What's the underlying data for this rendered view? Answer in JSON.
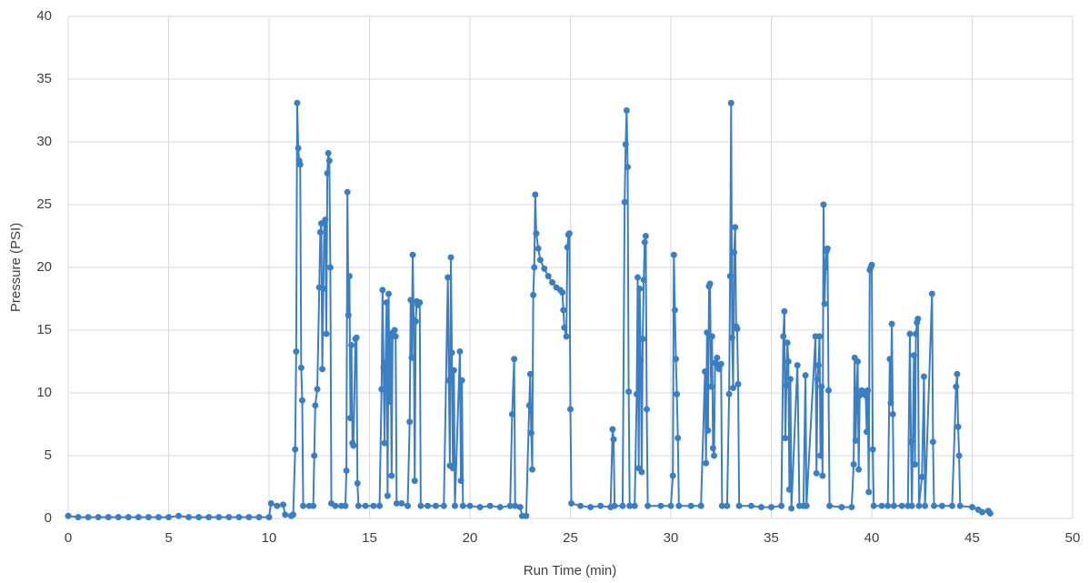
{
  "chart_data": {
    "type": "line",
    "x_label": "Run Time (min)",
    "y_label": "Pressure (PSI)",
    "xlim": [
      0,
      50
    ],
    "xticks": [
      0,
      5,
      10,
      15,
      20,
      25,
      30,
      35,
      40,
      45,
      50
    ],
    "ylim": [
      0,
      40
    ],
    "yticks": [
      0,
      5,
      10,
      15,
      20,
      25,
      30,
      35,
      40
    ],
    "grid": true,
    "x": [
      0,
      0.5,
      1,
      1.5,
      2,
      2.5,
      3,
      3.5,
      4,
      4.5,
      5,
      5.5,
      6,
      6.5,
      7,
      7.5,
      8,
      8.5,
      9,
      9.5,
      10,
      10.1,
      10.4,
      10.7,
      10.8,
      11.1,
      11.2,
      11.3,
      11.35,
      11.4,
      11.45,
      11.5,
      11.55,
      11.6,
      11.65,
      11.7,
      12.0,
      12.2,
      12.25,
      12.3,
      12.4,
      12.5,
      12.55,
      12.6,
      12.65,
      12.7,
      12.75,
      12.8,
      12.85,
      12.9,
      12.95,
      13.0,
      13.05,
      13.1,
      13.3,
      13.6,
      13.8,
      13.85,
      13.9,
      13.95,
      14.0,
      14.05,
      14.1,
      14.15,
      14.2,
      14.3,
      14.35,
      14.4,
      14.45,
      14.8,
      15.2,
      15.5,
      15.6,
      15.65,
      15.7,
      15.75,
      15.8,
      15.85,
      15.9,
      15.95,
      16.0,
      16.05,
      16.1,
      16.15,
      16.25,
      16.3,
      16.35,
      16.6,
      16.9,
      17.0,
      17.05,
      17.1,
      17.15,
      17.2,
      17.25,
      17.3,
      17.35,
      17.4,
      17.5,
      17.55,
      17.9,
      18.3,
      18.7,
      18.9,
      18.95,
      19.0,
      19.05,
      19.1,
      19.15,
      19.2,
      19.25,
      19.5,
      19.55,
      19.6,
      19.65,
      20.0,
      20.5,
      21.0,
      21.5,
      22.0,
      22.1,
      22.2,
      22.25,
      22.5,
      22.6,
      22.8,
      22.95,
      23.0,
      23.05,
      23.1,
      23.15,
      23.2,
      23.25,
      23.3,
      23.4,
      23.5,
      23.7,
      23.9,
      24.1,
      24.3,
      24.5,
      24.6,
      24.65,
      24.7,
      24.8,
      24.85,
      24.9,
      24.95,
      25.0,
      25.05,
      25.5,
      26.0,
      26.5,
      27.0,
      27.1,
      27.15,
      27.2,
      27.6,
      27.7,
      27.75,
      27.8,
      27.85,
      27.9,
      27.95,
      28.2,
      28.3,
      28.35,
      28.4,
      28.45,
      28.5,
      28.55,
      28.6,
      28.65,
      28.7,
      28.75,
      28.8,
      28.85,
      29.5,
      30.0,
      30.1,
      30.15,
      30.2,
      30.25,
      30.3,
      30.35,
      30.4,
      31.0,
      31.5,
      31.7,
      31.75,
      31.8,
      31.85,
      31.9,
      31.95,
      32.0,
      32.05,
      32.1,
      32.15,
      32.2,
      32.3,
      32.35,
      32.4,
      32.5,
      32.55,
      32.8,
      32.9,
      32.95,
      33.0,
      33.05,
      33.1,
      33.15,
      33.2,
      33.25,
      33.3,
      33.35,
      33.4,
      34.0,
      34.5,
      35.0,
      35.5,
      35.6,
      35.65,
      35.7,
      35.75,
      35.8,
      35.85,
      35.9,
      35.95,
      36.0,
      36.3,
      36.4,
      36.6,
      36.7,
      36.75,
      37.2,
      37.25,
      37.3,
      37.35,
      37.4,
      37.45,
      37.5,
      37.55,
      37.6,
      37.65,
      37.7,
      37.75,
      37.8,
      37.85,
      37.9,
      38.5,
      39.0,
      39.1,
      39.15,
      39.2,
      39.25,
      39.3,
      39.35,
      39.4,
      39.5,
      39.6,
      39.7,
      39.75,
      39.8,
      39.85,
      39.9,
      39.95,
      40.0,
      40.05,
      40.1,
      40.5,
      40.8,
      40.9,
      40.95,
      41.0,
      41.05,
      41.1,
      41.5,
      41.8,
      41.9,
      41.95,
      42.0,
      42.1,
      42.15,
      42.2,
      42.25,
      42.3,
      42.35,
      42.5,
      42.6,
      42.65,
      43.0,
      43.05,
      43.1,
      43.5,
      44.0,
      44.2,
      44.25,
      44.3,
      44.35,
      44.4,
      45.0,
      45.3,
      45.5,
      45.8,
      45.9
    ],
    "series": [
      {
        "color": "#3a7fc4",
        "values": [
          0.2,
          0.1,
          0.1,
          0.1,
          0.1,
          0.1,
          0.1,
          0.1,
          0.1,
          0.1,
          0.1,
          0.2,
          0.1,
          0.1,
          0.1,
          0.1,
          0.1,
          0.1,
          0.1,
          0.1,
          0.1,
          1.2,
          1.0,
          1.1,
          0.3,
          0.2,
          0.3,
          5.5,
          13.3,
          33.1,
          29.5,
          28.5,
          28.2,
          12,
          9.4,
          1.0,
          1.0,
          1.0,
          5.0,
          9.0,
          10.3,
          18.4,
          22.8,
          23.5,
          11.9,
          18.3,
          23.6,
          23.8,
          14.7,
          27.5,
          29.1,
          28.5,
          20,
          1.2,
          1.0,
          1.0,
          1.0,
          3.8,
          26,
          16.2,
          19.3,
          8,
          13.8,
          6,
          5.8,
          14.3,
          14.4,
          2.8,
          1.0,
          1.0,
          1.0,
          1.0,
          10.3,
          18.2,
          12,
          6,
          12.4,
          17.2,
          1.8,
          17.9,
          9.3,
          14.5,
          3.4,
          14.8,
          15.0,
          14.5,
          1.2,
          1.2,
          1.0,
          7.7,
          17.4,
          12.8,
          21,
          15.8,
          3.0,
          15.7,
          17.3,
          17.0,
          17.2,
          1.0,
          1.0,
          1.0,
          1.0,
          19.2,
          11,
          4.2,
          20.8,
          13.2,
          4,
          11.8,
          1.0,
          13.3,
          3,
          11,
          1.0,
          1.0,
          0.9,
          1.0,
          0.9,
          1.0,
          8.3,
          12.7,
          1.0,
          0.9,
          0.2,
          0.2,
          9,
          11.5,
          6.8,
          3.9,
          17.8,
          20,
          25.8,
          22.7,
          21.5,
          20.6,
          19.9,
          19.3,
          18.8,
          18.4,
          18.2,
          18.0,
          16.6,
          15.2,
          14.5,
          21.6,
          22.6,
          22.7,
          8.7,
          1.2,
          1.0,
          0.9,
          1.0,
          0.9,
          7.1,
          6.3,
          1.0,
          1.0,
          25.2,
          29.8,
          32.5,
          28,
          10.1,
          1.0,
          1.0,
          9.9,
          19.2,
          4,
          18.3,
          12.6,
          3.7,
          14.3,
          19,
          22,
          22.5,
          8.7,
          1.0,
          1.0,
          1.0,
          3.4,
          21,
          16.6,
          12.7,
          9.9,
          6.4,
          1.0,
          1.0,
          1.0,
          11.7,
          4.4,
          14.8,
          7,
          18.5,
          18.7,
          10.5,
          14.5,
          5.6,
          5.0,
          12.4,
          12.8,
          12.2,
          11.9,
          12.3,
          1.0,
          1.0,
          9.9,
          19.3,
          33.1,
          14.4,
          10.4,
          21.2,
          23.2,
          15.3,
          15.1,
          10.7,
          1.0,
          1.0,
          0.9,
          0.9,
          1.0,
          14.5,
          16.5,
          6.4,
          10.6,
          14.0,
          12.5,
          2.3,
          11.1,
          0.8,
          12.2,
          1.0,
          1.0,
          11.4,
          1.0,
          14.5,
          3.6,
          11.1,
          12.2,
          14.5,
          5.0,
          10.5,
          3.4,
          25.0,
          17.1,
          20.0,
          21.3,
          21.5,
          10.2,
          1.0,
          0.9,
          0.9,
          4.3,
          12.8,
          6.2,
          9.9,
          12.5,
          3.9,
          9.8,
          10.2,
          10.1,
          9.8,
          6.9,
          10.2,
          2.1,
          19.8,
          20.0,
          20.2,
          5.5,
          1.0,
          1.0,
          1.0,
          12.7,
          9.2,
          15.5,
          8.3,
          1.0,
          1.0,
          1.0,
          14.7,
          6.1,
          1.0,
          13,
          4.3,
          14.7,
          15.6,
          15.9,
          1.0,
          3.3,
          11.3,
          1.0,
          17.9,
          6.1,
          1.0,
          1.0,
          1.0,
          10.5,
          11.5,
          7.3,
          5.0,
          1.0,
          0.9,
          0.7,
          0.5,
          0.6,
          0.4
        ]
      }
    ]
  }
}
